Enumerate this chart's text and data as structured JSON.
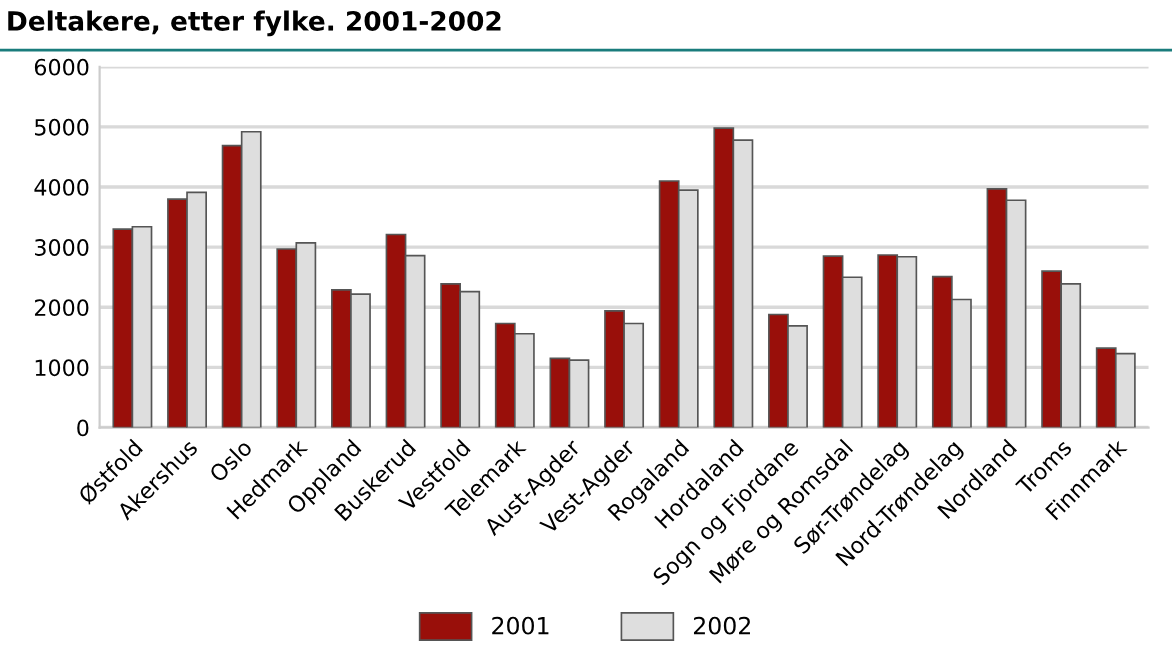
{
  "chart_data": {
    "type": "bar",
    "title": "Deltakere, etter fylke. 2001-2002",
    "categories": [
      "Østfold",
      "Akershus",
      "Oslo",
      "Hedmark",
      "Oppland",
      "Buskerud",
      "Vestfold",
      "Telemark",
      "Aust-Agder",
      "Vest-Agder",
      "Rogaland",
      "Hordaland",
      "Sogn og Fjordane",
      "Møre og Romsdal",
      "Sør-Trøndelag",
      "Nord-Trøndelag",
      "Nordland",
      "Troms",
      "Finnmark"
    ],
    "series": [
      {
        "name": "2001",
        "color": "#990f0a",
        "values": [
          3300,
          3800,
          4690,
          2970,
          2290,
          3210,
          2390,
          1730,
          1150,
          1940,
          4100,
          4980,
          1880,
          2850,
          2870,
          2510,
          3970,
          2600,
          1320
        ]
      },
      {
        "name": "2002",
        "color": "#dedede",
        "values": [
          3340,
          3910,
          4920,
          3070,
          2220,
          2860,
          2260,
          1560,
          1120,
          1730,
          3950,
          4780,
          1690,
          2500,
          2840,
          2130,
          3780,
          2390,
          1230
        ]
      }
    ],
    "ylim": [
      0,
      6000
    ],
    "yticks": [
      0,
      1000,
      2000,
      3000,
      4000,
      5000,
      6000
    ],
    "grid": "y",
    "legend": "bottom"
  }
}
